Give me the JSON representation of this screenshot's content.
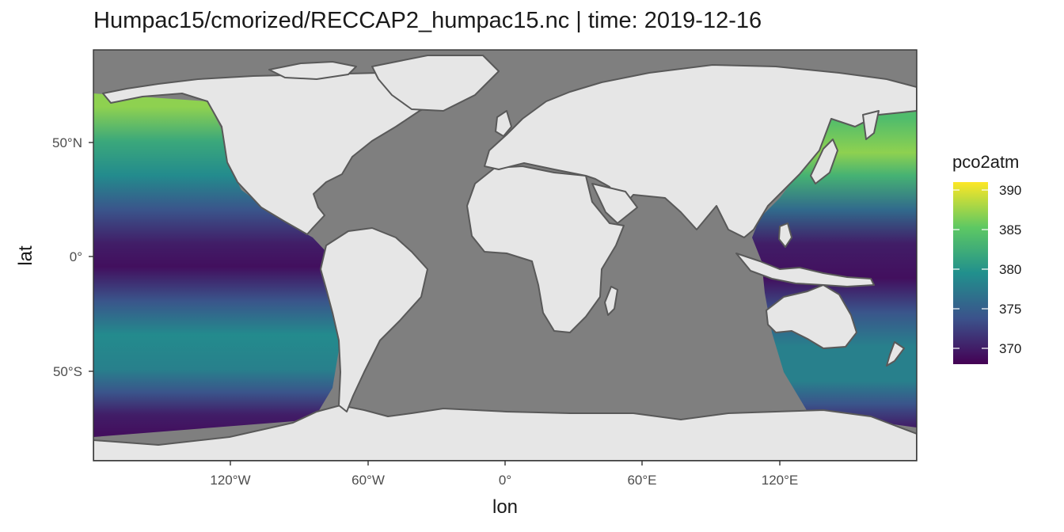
{
  "title": "Humpac15/cmorized/RECCAP2_humpac15.nc | time:  2019-12-16",
  "x_axis": {
    "title": "lon",
    "ticks": [
      "120°W",
      "60°W",
      "0°",
      "60°E",
      "120°E"
    ]
  },
  "y_axis": {
    "title": "lat",
    "ticks": [
      "50°N",
      "0°",
      "50°S"
    ]
  },
  "legend": {
    "title": "pco2atm",
    "labels": [
      "390",
      "385",
      "380",
      "375",
      "370"
    ],
    "range": [
      368,
      391
    ],
    "colors": [
      "#440154",
      "#3b528b",
      "#21908d",
      "#5dc863",
      "#fde725"
    ]
  },
  "colors": {
    "ocean_nodata": "#7f7f7f",
    "land": "#e6e6e6",
    "border": "#595959"
  },
  "chart_data": {
    "type": "heatmap",
    "variable": "pco2atm",
    "time": "2019-12-16",
    "xlabel": "lon",
    "ylabel": "lat",
    "xlim": [
      -180,
      180
    ],
    "ylim": [
      -90,
      90
    ],
    "color_range": [
      368,
      391
    ],
    "coverage": "Pacific Ocean only; other basins shown without data",
    "profiles": {
      "east_pacific": [
        {
          "lat": 65,
          "value": 387
        },
        {
          "lat": 50,
          "value": 382
        },
        {
          "lat": 35,
          "value": 379
        },
        {
          "lat": 20,
          "value": 374
        },
        {
          "lat": 5,
          "value": 370
        },
        {
          "lat": -5,
          "value": 369
        },
        {
          "lat": -20,
          "value": 374
        },
        {
          "lat": -35,
          "value": 379
        },
        {
          "lat": -50,
          "value": 378
        },
        {
          "lat": -60,
          "value": 374
        },
        {
          "lat": -70,
          "value": 370
        },
        {
          "lat": -78,
          "value": 369
        }
      ],
      "west_pacific": [
        {
          "lat": 60,
          "value": 384
        },
        {
          "lat": 45,
          "value": 387
        },
        {
          "lat": 35,
          "value": 383
        },
        {
          "lat": 20,
          "value": 376
        },
        {
          "lat": 5,
          "value": 370
        },
        {
          "lat": -10,
          "value": 369
        },
        {
          "lat": -25,
          "value": 374
        },
        {
          "lat": -40,
          "value": 378
        },
        {
          "lat": -55,
          "value": 378
        },
        {
          "lat": -65,
          "value": 374
        },
        {
          "lat": -75,
          "value": 370
        }
      ]
    }
  }
}
